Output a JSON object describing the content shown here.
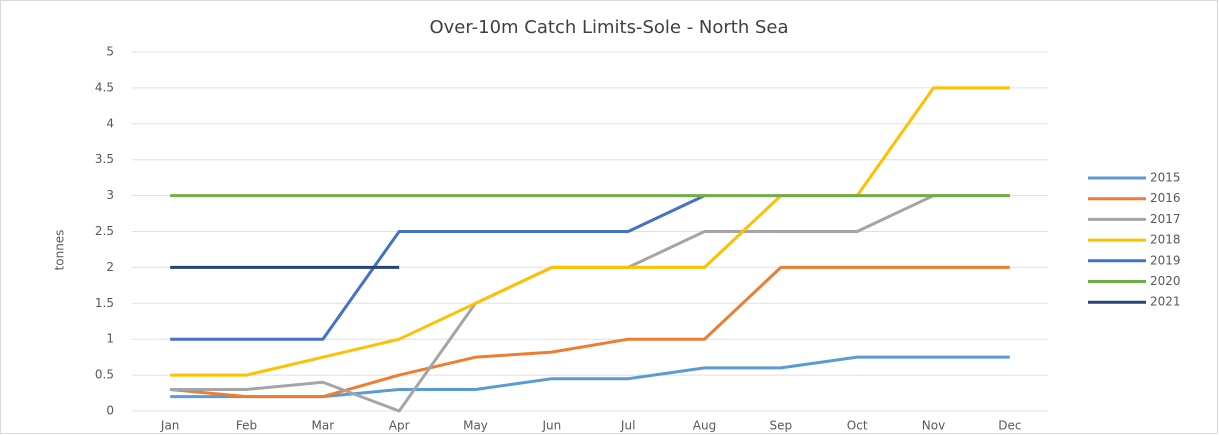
{
  "chart_data": {
    "type": "line",
    "title": "Over-10m Catch Limits-Sole - North Sea",
    "y_label": "tonnes",
    "categories": [
      "Jan",
      "Feb",
      "Mar",
      "Apr",
      "May",
      "Jun",
      "Jul",
      "Aug",
      "Sep",
      "Oct",
      "Nov",
      "Dec"
    ],
    "ylim": [
      0,
      5
    ],
    "yticks": [
      0,
      0.5,
      1,
      1.5,
      2,
      2.5,
      3,
      3.5,
      4,
      4.5,
      5
    ],
    "grid": true,
    "legend": "right",
    "series": [
      {
        "name": "2015",
        "color": "#5b9bd5",
        "values": [
          0.2,
          0.2,
          0.2,
          0.3,
          0.3,
          0.45,
          0.45,
          0.6,
          0.6,
          0.75,
          0.75,
          0.75
        ]
      },
      {
        "name": "2016",
        "color": "#ed7d31",
        "values": [
          0.3,
          0.2,
          0.2,
          0.5,
          0.75,
          0.82,
          1,
          1,
          2,
          2,
          2,
          2
        ]
      },
      {
        "name": "2017",
        "color": "#a5a5a5",
        "values": [
          0.3,
          0.3,
          0.4,
          0,
          1.5,
          2,
          2,
          2.5,
          2.5,
          2.5,
          3,
          3
        ]
      },
      {
        "name": "2018",
        "color": "#ffc000",
        "values": [
          0.5,
          0.5,
          0.75,
          1,
          1.5,
          2,
          2,
          2,
          3,
          3,
          4.5,
          4.5
        ]
      },
      {
        "name": "2019",
        "color": "#4472c4",
        "values": [
          1,
          1,
          1,
          2.5,
          2.5,
          2.5,
          2.5,
          3,
          null,
          null,
          null,
          null
        ]
      },
      {
        "name": "2020",
        "color": "#70ad47",
        "values": [
          3,
          3,
          3,
          3,
          3,
          3,
          3,
          3,
          3,
          3,
          3,
          3
        ]
      },
      {
        "name": "2021",
        "color": "#264478",
        "values": [
          2,
          2,
          2,
          2,
          null,
          null,
          null,
          null,
          null,
          null,
          null,
          null
        ]
      }
    ]
  }
}
